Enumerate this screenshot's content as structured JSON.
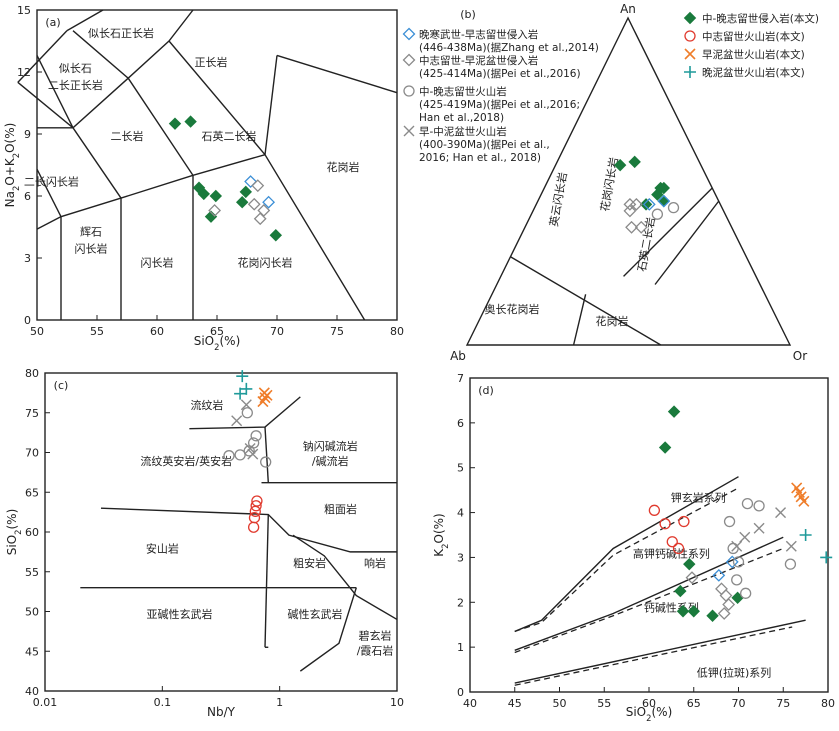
{
  "chart_data": [
    {
      "type": "scatter",
      "panel_label": "(a)",
      "xlabel": "SiO2(%)",
      "ylabel": "Na2O+K2O(%)",
      "xlim": [
        50,
        80
      ],
      "ylim": [
        0,
        15
      ],
      "xticks": [
        "50",
        "55",
        "60",
        "65",
        "70",
        "75",
        "80"
      ],
      "yticks": [
        "0",
        "3",
        "6",
        "9",
        "12",
        "15"
      ],
      "fields": [
        "似长石正长岩",
        "似长石\n二长正长岩",
        "正长岩",
        "二长岩",
        "石英二长岩",
        "二长闪长岩",
        "花岗岩",
        "辉石\n闪长岩",
        "闪长岩",
        "花岗闪长岩"
      ],
      "series": [
        {
          "name": "中-晚志留世侵入岩(本文)",
          "points": [
            [
              61.5,
              9.5
            ],
            [
              62.8,
              9.6
            ],
            [
              63.5,
              6.4
            ],
            [
              63.9,
              6.1
            ],
            [
              64.9,
              6.0
            ],
            [
              64.5,
              5.0
            ],
            [
              67.1,
              5.7
            ],
            [
              67.4,
              6.2
            ],
            [
              69.9,
              4.1
            ]
          ]
        },
        {
          "name": "晚寒武世-早志留世侵入岩(446-438Ma)(据Zhang et al.,2014)",
          "points": [
            [
              67.8,
              6.7
            ],
            [
              69.3,
              5.7
            ]
          ]
        },
        {
          "name": "中志留世-早泥盆世侵入岩(425-414Ma)(据Pei et al.,2016)",
          "points": [
            [
              64.8,
              5.3
            ],
            [
              68.1,
              5.6
            ],
            [
              68.6,
              4.9
            ],
            [
              68.9,
              5.3
            ],
            [
              68.4,
              6.5
            ]
          ]
        }
      ]
    },
    {
      "type": "ternary",
      "panel_label": "(b)",
      "vertices": [
        "An",
        "Ab",
        "Or"
      ],
      "fields": [
        "英云闪长岩",
        "花岗闪长岩",
        "石英二长岩",
        "奥长花岗岩",
        "花岗岩"
      ],
      "series": [
        {
          "name": "中-晚志留世侵入岩(本文)",
          "points": [
            [
              0.46,
              0.36
            ],
            [
              0.43,
              0.34
            ],
            [
              0.56,
              0.24
            ],
            [
              0.55,
              0.2
            ],
            [
              0.44,
              0.39
            ],
            [
              0.48,
              0.36
            ],
            [
              0.48,
              0.37
            ]
          ]
        },
        {
          "name": "晚寒武世-早志留世侵入岩(446-438Ma)(据Zhang et al.,2014)",
          "points": [
            [
              0.43,
              0.35
            ],
            [
              0.44,
              0.39
            ]
          ]
        },
        {
          "name": "中志留世-早泥盆世侵入岩(425-414Ma)(据Pei et al.,2016)",
          "points": [
            [
              0.43,
              0.29
            ],
            [
              0.43,
              0.31
            ],
            [
              0.41,
              0.3
            ],
            [
              0.36,
              0.33
            ],
            [
              0.36,
              0.36
            ]
          ]
        },
        {
          "name": "中-晚志留世火山岩(425-419Ma)(据Pei et al.,2016; Han et al.,2018)",
          "points": [
            [
              0.4,
              0.39
            ],
            [
              0.42,
              0.43
            ]
          ]
        }
      ]
    },
    {
      "type": "scatter",
      "panel_label": "(c)",
      "xlabel": "Nb/Y",
      "ylabel": "SiO2(%)",
      "xscale": "log",
      "xlim": [
        0.01,
        10
      ],
      "ylim": [
        40,
        80
      ],
      "xticks": [
        "0.01",
        "0.1",
        "1",
        "10"
      ],
      "yticks": [
        "40",
        "45",
        "50",
        "55",
        "60",
        "65",
        "70",
        "75",
        "80"
      ],
      "fields": [
        "流纹岩",
        "钠闪碱流岩\n/碱流岩",
        "流纹英安岩/英安岩",
        "粗面岩",
        "安山岩",
        "粗安岩",
        "响岩",
        "亚碱性玄武岩",
        "碱性玄武岩",
        "碧玄岩\n/霞石岩"
      ],
      "series": [
        {
          "name": "中志留世火山岩(本文)",
          "points": [
            [
              0.6,
              60.6
            ],
            [
              0.61,
              61.8
            ],
            [
              0.62,
              62.6
            ],
            [
              0.63,
              63.3
            ],
            [
              0.64,
              63.9
            ]
          ]
        },
        {
          "name": "早泥盆世火山岩(本文)",
          "points": [
            [
              0.72,
              76.4
            ],
            [
              0.75,
              76.9
            ],
            [
              0.78,
              77.2
            ],
            [
              0.74,
              77.5
            ]
          ]
        },
        {
          "name": "晚泥盆世火山岩(本文)",
          "points": [
            [
              0.48,
              79.6
            ],
            [
              0.46,
              77.4
            ],
            [
              0.52,
              78.0
            ]
          ]
        },
        {
          "name": "中-晚志留世火山岩(425-419Ma)(据Pei et al.,2016; Han et al.,2018)",
          "points": [
            [
              0.37,
              69.6
            ],
            [
              0.46,
              69.7
            ],
            [
              0.55,
              70.2
            ],
            [
              0.6,
              71.2
            ],
            [
              0.63,
              72.1
            ],
            [
              0.53,
              75.0
            ],
            [
              0.76,
              68.8
            ]
          ]
        },
        {
          "name": "早-中泥盆世火山岩(400-390Ma)(据Pei et al.,2016; Han et al.,2018)",
          "points": [
            [
              0.43,
              74.0
            ],
            [
              0.52,
              76.0
            ],
            [
              0.56,
              70.5
            ],
            [
              0.59,
              69.8
            ]
          ]
        }
      ]
    },
    {
      "type": "scatter",
      "panel_label": "(d)",
      "xlabel": "SiO2(%)",
      "ylabel": "K2O(%)",
      "xlim": [
        40,
        80
      ],
      "ylim": [
        0,
        7
      ],
      "xticks": [
        "40",
        "45",
        "50",
        "55",
        "60",
        "65",
        "70",
        "75",
        "80"
      ],
      "yticks": [
        "0",
        "1",
        "2",
        "3",
        "4",
        "5",
        "6",
        "7"
      ],
      "fields": [
        "钾玄岩系列",
        "高钾钙碱性系列",
        "钙碱性系列",
        "低钾(拉斑)系列"
      ],
      "series": [
        {
          "name": "中-晚志留世侵入岩(本文)",
          "points": [
            [
              62.8,
              6.25
            ],
            [
              61.8,
              5.45
            ],
            [
              64.5,
              2.85
            ],
            [
              63.5,
              2.25
            ],
            [
              63.8,
              1.8
            ],
            [
              65.0,
              1.8
            ],
            [
              67.1,
              1.7
            ],
            [
              69.9,
              2.1
            ]
          ]
        },
        {
          "name": "中志留世火山岩(本文)",
          "points": [
            [
              60.6,
              4.05
            ],
            [
              61.8,
              3.75
            ],
            [
              62.6,
              3.35
            ],
            [
              63.3,
              3.2
            ],
            [
              63.9,
              3.8
            ]
          ]
        },
        {
          "name": "早泥盆世火山岩(本文)",
          "points": [
            [
              76.5,
              4.55
            ],
            [
              76.8,
              4.45
            ],
            [
              77.0,
              4.35
            ],
            [
              77.3,
              4.25
            ]
          ]
        },
        {
          "name": "晚泥盆世火山岩(本文)",
          "points": [
            [
              77.5,
              3.5
            ],
            [
              79.8,
              3.0
            ]
          ]
        },
        {
          "name": "晚寒武世-早志留世侵入岩(446-438Ma)(据Zhang et al.,2014)",
          "points": [
            [
              67.8,
              2.6
            ],
            [
              69.3,
              2.9
            ]
          ]
        },
        {
          "name": "中志留世-早泥盆世侵入岩(425-414Ma)(据Pei et al.,2016)",
          "points": [
            [
              64.8,
              2.55
            ],
            [
              68.1,
              2.3
            ],
            [
              68.6,
              2.15
            ],
            [
              68.9,
              1.95
            ],
            [
              68.4,
              1.75
            ]
          ]
        },
        {
          "name": "中-晚志留世火山岩(425-419Ma)(据Pei et al.,2016; Han et al.,2018)",
          "points": [
            [
              69.0,
              3.8
            ],
            [
              71.0,
              4.2
            ],
            [
              72.3,
              4.15
            ],
            [
              70.0,
              2.9
            ],
            [
              70.8,
              2.2
            ],
            [
              69.8,
              2.5
            ],
            [
              75.8,
              2.85
            ],
            [
              69.4,
              3.2
            ]
          ]
        },
        {
          "name": "早-中泥盆世火山岩(400-390Ma)(据Pei et al.,2016; Han et al.,2018)",
          "points": [
            [
              70.7,
              3.45
            ],
            [
              72.3,
              3.65
            ],
            [
              74.7,
              4.0
            ],
            [
              75.9,
              3.25
            ],
            [
              69.8,
              3.25
            ]
          ]
        }
      ]
    }
  ],
  "legend_b": {
    "items": [
      {
        "symbol": "diamond-open-blue",
        "line1": "晚寒武世-早志留世侵入岩",
        "line2": "(446-438Ma)(据Zhang et al.,2014)"
      },
      {
        "symbol": "diamond-open-gray",
        "line1": "中志留世-早泥盆世侵入岩",
        "line2": "(425-414Ma)(据Pei et al.,2016)"
      },
      {
        "symbol": "circle-open-gray",
        "line1": "中-晚志留世火山岩",
        "line2": "(425-419Ma)(据Pei et al.,2016;",
        "line3": "Han et al.,2018)"
      },
      {
        "symbol": "x-gray",
        "line1": "早-中泥盆世火山岩",
        "line2": "(400-390Ma)(据Pei et al.,",
        "line3": "2016; Han et al., 2018)"
      }
    ]
  },
  "legend_right": {
    "items": [
      {
        "symbol": "diamond-filled-green",
        "label": "中-晚志留世侵入岩(本文)"
      },
      {
        "symbol": "circle-open-red",
        "label": "中志留世火山岩(本文)"
      },
      {
        "symbol": "x-orange",
        "label": "早泥盆世火山岩(本文)"
      },
      {
        "symbol": "plus-teal",
        "label": "晚泥盆世火山岩(本文)"
      }
    ]
  },
  "colors": {
    "green": "#1a7a3c",
    "blue": "#3c8fd6",
    "gray": "#8a8a8a",
    "red": "#e03a2e",
    "orange": "#ef7d2a",
    "teal": "#1f9a9a",
    "axis": "#222222"
  }
}
